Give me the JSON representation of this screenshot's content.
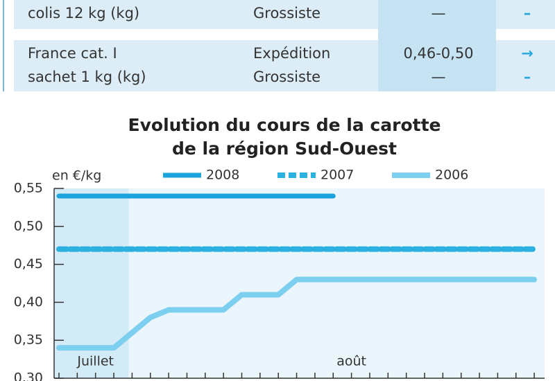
{
  "table": {
    "rows": [
      [
        [
          "colis 12 kg (kg)"
        ],
        [
          "Grossiste"
        ],
        [
          "—"
        ],
        [
          "–"
        ]
      ],
      [
        [
          "France cat. I",
          "sachet 1 kg (kg)"
        ],
        [
          "Expédition",
          "Grossiste"
        ],
        [
          "0,46-0,50",
          "—"
        ],
        [
          "→",
          "–"
        ]
      ]
    ]
  },
  "chart_data": {
    "type": "line",
    "title": [
      "Evolution du cours de la carotte",
      "de la région Sud-Ouest"
    ],
    "y_label": "en €/kg",
    "categories": [
      null,
      null,
      "Juillet",
      null,
      null,
      null,
      null,
      null,
      null,
      null,
      null,
      null,
      null,
      null,
      null,
      null,
      "août",
      null,
      null,
      null,
      null,
      null,
      null,
      null,
      null,
      null,
      null
    ],
    "series": [
      {
        "name": "2008",
        "color": "#1aa3dc",
        "style": "solid",
        "values": [
          0.54,
          0.54,
          0.54,
          0.54,
          0.54,
          0.54,
          0.54,
          0.54,
          0.54,
          0.54,
          0.54,
          0.54,
          0.54,
          0.54,
          0.54,
          0.54,
          null,
          null,
          null,
          null,
          null,
          null,
          null,
          null,
          null,
          null,
          null
        ]
      },
      {
        "name": "2007",
        "color": "#2cb0e0",
        "style": "dashed",
        "values": [
          0.47,
          0.47,
          0.47,
          0.47,
          0.47,
          0.47,
          0.47,
          0.47,
          0.47,
          0.47,
          0.47,
          0.47,
          0.47,
          0.47,
          0.47,
          0.47,
          0.47,
          0.47,
          0.47,
          0.47,
          0.47,
          0.47,
          0.47,
          0.47,
          0.47,
          0.47,
          0.47
        ]
      },
      {
        "name": "2006",
        "color": "#7dcff0",
        "style": "solid",
        "values": [
          0.34,
          0.34,
          0.34,
          0.34,
          0.36,
          0.38,
          0.39,
          0.39,
          0.39,
          0.39,
          0.41,
          0.41,
          0.41,
          0.43,
          0.43,
          0.43,
          0.43,
          0.43,
          0.43,
          0.43,
          0.43,
          0.43,
          0.43,
          0.43,
          0.43,
          0.43,
          0.43
        ]
      }
    ],
    "ylim": [
      0.3,
      0.55
    ],
    "yticks": [
      {
        "value": 0.3,
        "label": "0,30"
      },
      {
        "value": 0.35,
        "label": "0,35"
      },
      {
        "value": 0.4,
        "label": "0,40"
      },
      {
        "value": 0.45,
        "label": "0,45"
      },
      {
        "value": 0.5,
        "label": "0,50"
      },
      {
        "value": 0.55,
        "label": "0,55"
      }
    ],
    "grid": false
  }
}
